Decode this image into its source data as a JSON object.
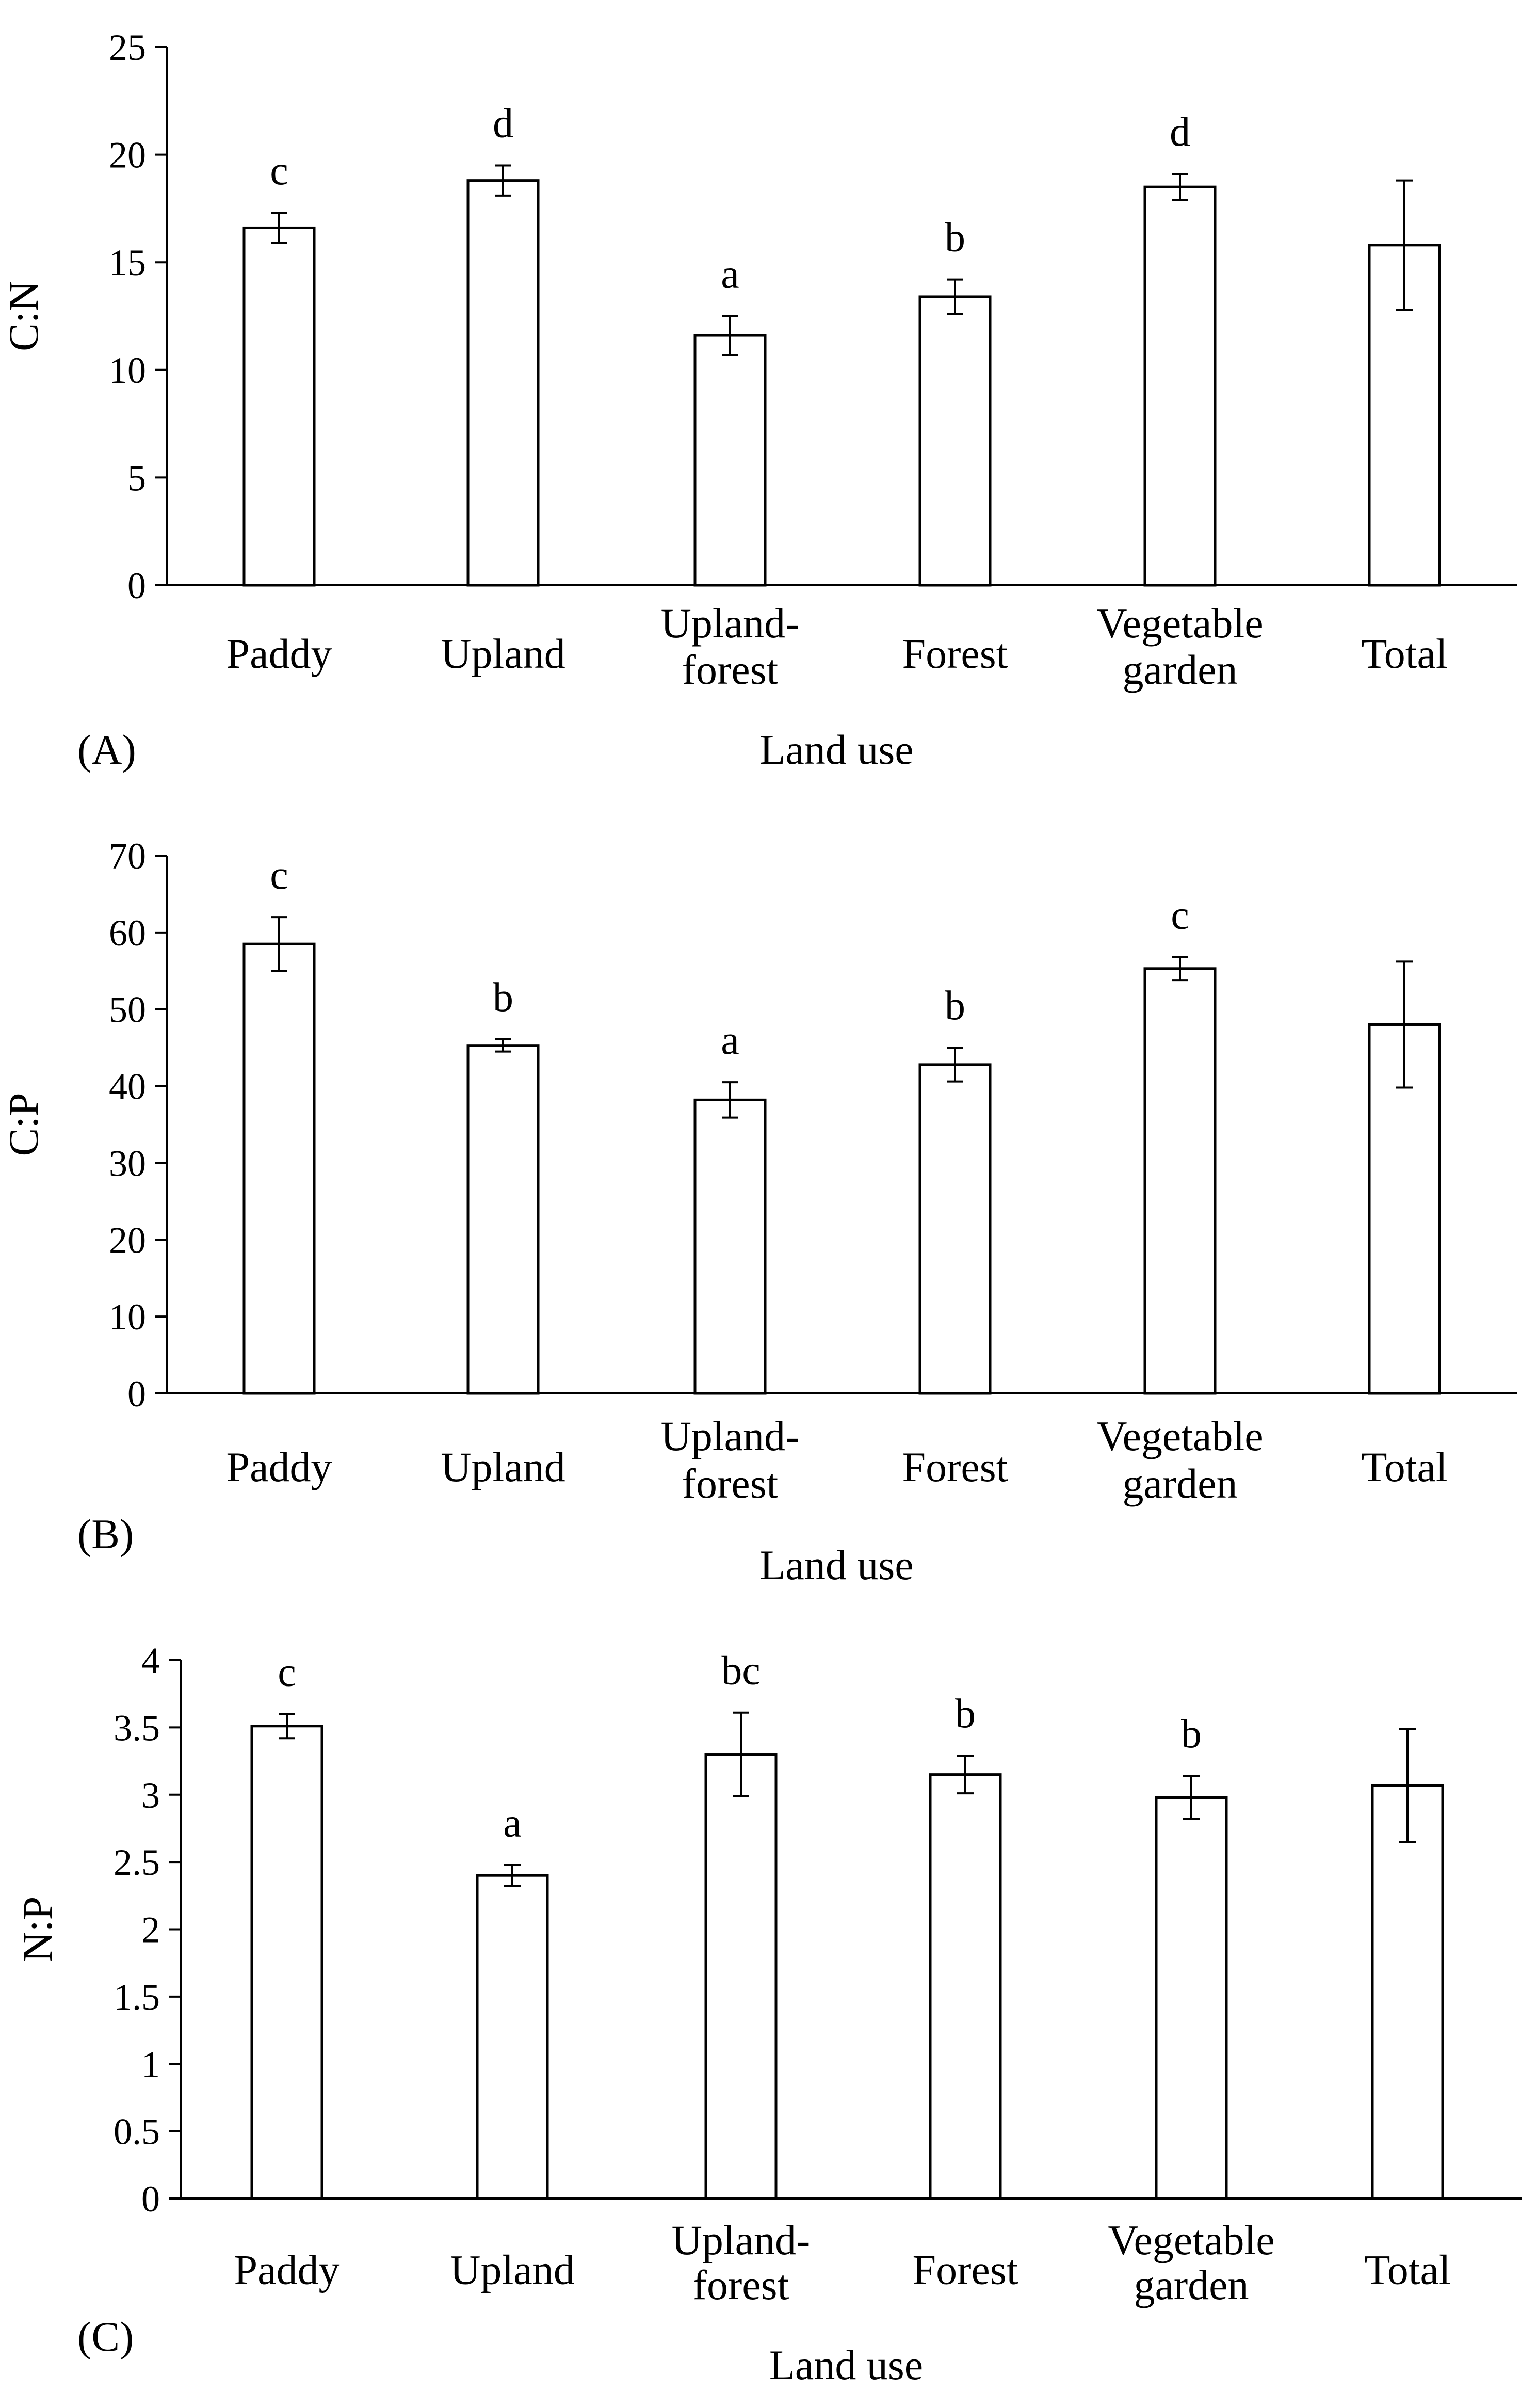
{
  "chart_data": [
    {
      "type": "bar",
      "panel": "(A)",
      "xlabel": "Land use",
      "ylabel": "C:N",
      "ylim": [
        0,
        25
      ],
      "yticks": [
        "0",
        "5",
        "10",
        "15",
        "20",
        "25"
      ],
      "categories": [
        [
          "Paddy"
        ],
        [
          "Upland"
        ],
        [
          "Upland-",
          "forest"
        ],
        [
          "Forest"
        ],
        [
          "Vegetable",
          "garden"
        ],
        [
          "Total"
        ]
      ],
      "values": [
        16.6,
        18.8,
        11.6,
        13.4,
        18.5,
        15.8
      ],
      "errors": [
        0.7,
        0.7,
        0.9,
        0.8,
        0.6,
        3.0
      ],
      "significance": [
        "c",
        "d",
        "a",
        "b",
        "d",
        ""
      ],
      "grid": false
    },
    {
      "type": "bar",
      "panel": "(B)",
      "xlabel": "Land use",
      "ylabel": "C:P",
      "ylim": [
        0,
        70
      ],
      "yticks": [
        "0",
        "10",
        "20",
        "30",
        "40",
        "50",
        "60",
        "70"
      ],
      "categories": [
        [
          "Paddy"
        ],
        [
          "Upland"
        ],
        [
          "Upland-",
          "forest"
        ],
        [
          "Forest"
        ],
        [
          "Vegetable",
          "garden"
        ],
        [
          "Total"
        ]
      ],
      "values": [
        58.5,
        45.3,
        38.2,
        42.8,
        55.3,
        48.0
      ],
      "errors": [
        3.5,
        0.8,
        2.3,
        2.2,
        1.5,
        8.2
      ],
      "significance": [
        "c",
        "b",
        "a",
        "b",
        "c",
        ""
      ],
      "grid": false
    },
    {
      "type": "bar",
      "panel": "(C)",
      "xlabel": "Land use",
      "ylabel": "N:P",
      "ylim": [
        0,
        4
      ],
      "yticks": [
        "0",
        "0.5",
        "1",
        "1.5",
        "2",
        "2.5",
        "3",
        "3.5",
        "4"
      ],
      "categories": [
        [
          "Paddy"
        ],
        [
          "Upland"
        ],
        [
          "Upland-",
          "forest"
        ],
        [
          "Forest"
        ],
        [
          "Vegetable",
          "garden"
        ],
        [
          "Total"
        ]
      ],
      "values": [
        3.51,
        2.4,
        3.3,
        3.15,
        2.98,
        3.07
      ],
      "errors": [
        0.09,
        0.08,
        0.31,
        0.14,
        0.16,
        0.42
      ],
      "significance": [
        "c",
        "a",
        "bc",
        "b",
        "b",
        ""
      ],
      "grid": false
    }
  ]
}
